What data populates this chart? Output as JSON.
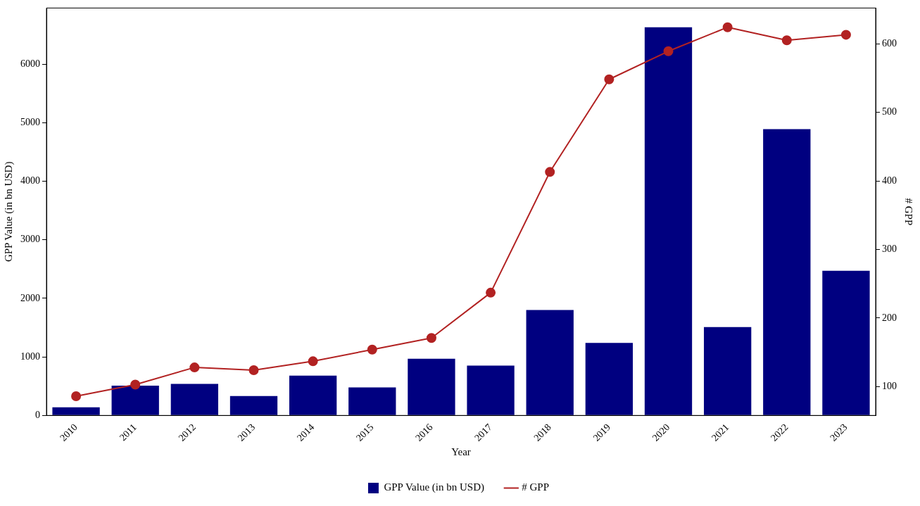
{
  "chart_data": {
    "type": "bar",
    "xlabel": "Year",
    "ylabel": "GPP Value (in bn USD)",
    "y2label": "# GPP",
    "categories": [
      "2010",
      "2011",
      "2012",
      "2013",
      "2014",
      "2015",
      "2016",
      "2017",
      "2018",
      "2019",
      "2020",
      "2021",
      "2022",
      "2023"
    ],
    "series": [
      {
        "name": "GPP Value (in bn USD)",
        "color": "#000080",
        "values": [
          140,
          510,
          540,
          330,
          680,
          480,
          970,
          850,
          1800,
          1240,
          6630,
          1510,
          4890,
          2470
        ]
      },
      {
        "name": "# GPP",
        "type": "line",
        "axis": "y2",
        "color": "#b22222",
        "marker": "circle",
        "values": [
          86,
          103,
          128,
          124,
          137,
          154,
          171,
          237,
          413,
          548,
          589,
          624,
          605,
          613
        ]
      }
    ],
    "ylim": [
      0,
      6960
    ],
    "yticks": [
      0,
      1000,
      2000,
      3000,
      4000,
      5000,
      6000
    ],
    "y2lim": [
      58,
      652
    ],
    "y2ticks": [
      100,
      200,
      300,
      400,
      500,
      600
    ],
    "grid": false,
    "legend": "bottom"
  }
}
